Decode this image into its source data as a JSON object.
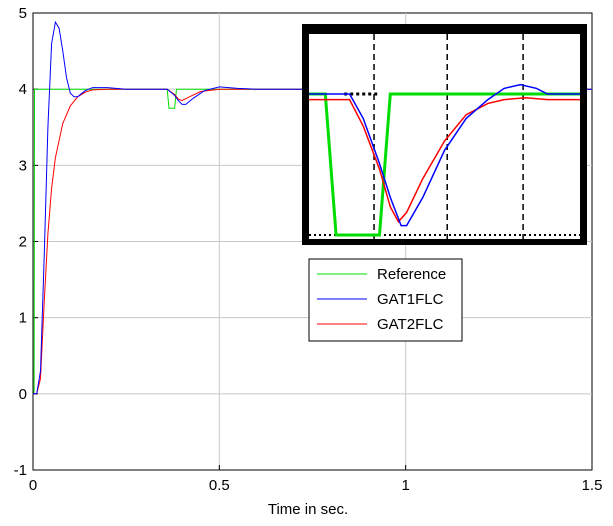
{
  "chart_data": {
    "type": "line",
    "title": "",
    "xlabel": "Time in sec.",
    "ylabel": "",
    "xlim": [
      0,
      1.5
    ],
    "ylim": [
      -1,
      5
    ],
    "x_ticks": [
      "0",
      "0.5",
      "1",
      "1.5"
    ],
    "y_ticks": [
      "-1",
      "0",
      "1",
      "2",
      "3",
      "4",
      "5"
    ],
    "grid": true,
    "legend_position": "right-center",
    "series": [
      {
        "name": "Reference",
        "color": "#00dd00",
        "x": [
          0,
          0.003,
          0.004,
          0.36,
          0.365,
          0.38,
          0.385,
          1.5
        ],
        "y": [
          0,
          0,
          4,
          4,
          3.75,
          3.75,
          4,
          4
        ]
      },
      {
        "name": "GAT1FLC",
        "color": "#0000ff",
        "x": [
          0,
          0.01,
          0.02,
          0.03,
          0.04,
          0.05,
          0.06,
          0.07,
          0.08,
          0.09,
          0.1,
          0.11,
          0.12,
          0.13,
          0.14,
          0.16,
          0.2,
          0.25,
          0.3,
          0.34,
          0.36,
          0.38,
          0.39,
          0.4,
          0.41,
          0.43,
          0.46,
          0.5,
          0.55,
          0.6,
          0.65,
          1.5
        ],
        "y": [
          0,
          0,
          0.3,
          1.8,
          3.5,
          4.6,
          4.88,
          4.8,
          4.5,
          4.15,
          3.95,
          3.9,
          3.9,
          3.94,
          3.98,
          4.02,
          4.02,
          4.0,
          4.0,
          4.0,
          4.0,
          3.92,
          3.85,
          3.8,
          3.8,
          3.88,
          3.98,
          4.03,
          4.01,
          4.0,
          4.0,
          4.0
        ]
      },
      {
        "name": "GAT2FLC",
        "color": "#ff0000",
        "x": [
          0,
          0.01,
          0.02,
          0.03,
          0.04,
          0.05,
          0.06,
          0.08,
          0.1,
          0.12,
          0.14,
          0.16,
          0.2,
          0.3,
          0.36,
          0.38,
          0.39,
          0.4,
          0.42,
          0.45,
          0.5,
          0.55,
          1.5
        ],
        "y": [
          0,
          0,
          0.2,
          1.2,
          2.1,
          2.7,
          3.1,
          3.55,
          3.78,
          3.9,
          3.96,
          3.99,
          4.0,
          4.0,
          4.0,
          3.93,
          3.87,
          3.85,
          3.9,
          3.97,
          4.0,
          4.0,
          4.0
        ]
      }
    ],
    "inset": {
      "description_visible": "zoomed view of disturbance region",
      "series": [
        {
          "name": "Reference",
          "color": "#00dd00",
          "x": [
            0,
            0.06,
            0.1,
            0.2,
            0.26,
            0.3,
            1.0
          ],
          "y": [
            0.75,
            0.75,
            0.0,
            0.0,
            0.0,
            0.75,
            0.75
          ]
        },
        {
          "name": "GAT1FLC",
          "color": "#0000ff",
          "x": [
            0,
            0.15,
            0.2,
            0.26,
            0.3,
            0.34,
            0.36,
            0.42,
            0.5,
            0.58,
            0.66,
            0.72,
            0.78,
            0.84,
            0.88,
            1.0
          ],
          "y": [
            0.75,
            0.75,
            0.62,
            0.38,
            0.2,
            0.05,
            0.05,
            0.2,
            0.45,
            0.62,
            0.72,
            0.78,
            0.8,
            0.78,
            0.75,
            0.75
          ]
        },
        {
          "name": "GAT2FLC",
          "color": "#ff0000",
          "x": [
            0,
            0.15,
            0.2,
            0.26,
            0.3,
            0.33,
            0.36,
            0.42,
            0.5,
            0.58,
            0.66,
            0.72,
            0.8,
            0.88,
            1.0
          ],
          "y": [
            0.72,
            0.72,
            0.58,
            0.35,
            0.15,
            0.07,
            0.12,
            0.3,
            0.5,
            0.64,
            0.7,
            0.72,
            0.73,
            0.72,
            0.72
          ]
        }
      ]
    }
  }
}
